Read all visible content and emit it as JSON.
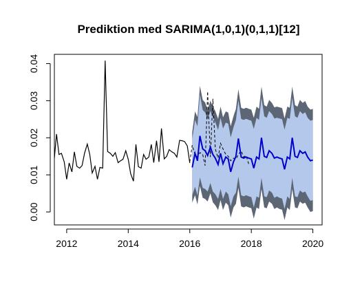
{
  "chart_data": {
    "type": "line",
    "title": "Prediktion med SARIMA(1,0,1)(0,1,1)[12]",
    "xlabel": "",
    "ylabel": "",
    "xlim": [
      2011.6,
      2020.3
    ],
    "ylim": [
      -0.0035,
      0.0425
    ],
    "x_ticks": [
      2012,
      2014,
      2016,
      2018,
      2020
    ],
    "x_tick_labels": [
      "2012",
      "2014",
      "2016",
      "2018",
      "2020"
    ],
    "y_ticks": [
      0.0,
      0.01,
      0.02,
      0.03,
      0.04
    ],
    "y_tick_labels": [
      "0.00",
      "0.01",
      "0.02",
      "0.03",
      "0.04"
    ],
    "grid": false,
    "legend": "none",
    "colors": {
      "observed": "#000000",
      "actual_dashed": "#000000",
      "forecast": "#0000cc",
      "band_80": "#b4c8ec",
      "band_95": "#5c6675"
    },
    "observed": {
      "x": [
        2011.6,
        2011.67,
        2011.75,
        2011.83,
        2011.92,
        2012.0,
        2012.08,
        2012.17,
        2012.25,
        2012.33,
        2012.42,
        2012.5,
        2012.58,
        2012.67,
        2012.75,
        2012.83,
        2012.92,
        2013.0,
        2013.08,
        2013.17,
        2013.25,
        2013.33,
        2013.42,
        2013.5,
        2013.58,
        2013.67,
        2013.75,
        2013.83,
        2013.92,
        2014.0,
        2014.08,
        2014.17,
        2014.25,
        2014.33,
        2014.42,
        2014.5,
        2014.58,
        2014.67,
        2014.75,
        2014.83,
        2014.92,
        2015.0,
        2015.08,
        2015.17,
        2015.25,
        2015.33,
        2015.42,
        2015.5,
        2015.58,
        2015.67,
        2015.75,
        2015.83,
        2015.92,
        2016.0
      ],
      "y": [
        0.0145,
        0.021,
        0.0155,
        0.0158,
        0.0135,
        0.0088,
        0.0132,
        0.0108,
        0.0162,
        0.0123,
        0.0118,
        0.0125,
        0.0158,
        0.0183,
        0.0155,
        0.0105,
        0.0123,
        0.0088,
        0.012,
        0.0118,
        0.0408,
        0.0163,
        0.0158,
        0.015,
        0.016,
        0.0133,
        0.0138,
        0.0142,
        0.0165,
        0.0142,
        0.0103,
        0.0083,
        0.0182,
        0.0122,
        0.0118,
        0.0155,
        0.0142,
        0.0148,
        0.0182,
        0.0133,
        0.0192,
        0.0135,
        0.0225,
        0.0143,
        0.015,
        0.0168,
        0.0162,
        0.0158,
        0.0148,
        0.0193,
        0.0192,
        0.019,
        0.0178,
        0.0132
      ]
    },
    "actual_dashed": {
      "x": [
        2016.0,
        2016.08,
        2016.17,
        2016.25,
        2016.33,
        2016.42,
        2016.5,
        2016.58,
        2016.67,
        2016.75,
        2016.83,
        2016.92,
        2017.0,
        2017.08,
        2017.17,
        2017.25,
        2017.33,
        2017.42,
        2017.5,
        2017.58,
        2017.67,
        2017.75,
        2017.83,
        2017.92
      ],
      "y": [
        0.0135,
        0.018,
        0.0155,
        0.0148,
        0.016,
        0.0155,
        0.0125,
        0.0325,
        0.0148,
        0.0305,
        0.017,
        0.0145,
        0.0185,
        0.017,
        0.0155,
        0.015,
        0.0138,
        0.0145,
        0.0142,
        0.0155,
        0.0165,
        0.0148,
        0.0152,
        0.0128
      ]
    },
    "forecast": {
      "x": [
        2016.08,
        2016.17,
        2016.25,
        2016.33,
        2016.42,
        2016.5,
        2016.58,
        2016.67,
        2016.75,
        2016.83,
        2016.92,
        2017.0,
        2017.08,
        2017.17,
        2017.25,
        2017.33,
        2017.42,
        2017.5,
        2017.58,
        2017.67,
        2017.75,
        2017.83,
        2017.92,
        2018.0,
        2018.08,
        2018.17,
        2018.25,
        2018.33,
        2018.42,
        2018.5,
        2018.58,
        2018.67,
        2018.75,
        2018.83,
        2018.92,
        2019.0,
        2019.08,
        2019.17,
        2019.25,
        2019.33,
        2019.42,
        2019.5,
        2019.58,
        2019.67,
        2019.75,
        2019.83,
        2019.92,
        2020.0
      ],
      "y": [
        0.012,
        0.0158,
        0.0138,
        0.0205,
        0.017,
        0.0165,
        0.0152,
        0.0175,
        0.0155,
        0.0145,
        0.0128,
        0.0158,
        0.013,
        0.0148,
        0.0143,
        0.0108,
        0.0135,
        0.015,
        0.0198,
        0.0148,
        0.0145,
        0.0148,
        0.0145,
        0.0143,
        0.0118,
        0.0148,
        0.0143,
        0.02,
        0.015,
        0.0147,
        0.0165,
        0.0158,
        0.0145,
        0.0148,
        0.0145,
        0.0143,
        0.0115,
        0.0148,
        0.0143,
        0.02,
        0.015,
        0.0147,
        0.0165,
        0.0158,
        0.0162,
        0.0148,
        0.0138,
        0.014
      ],
      "lo80": [
        0.0045,
        0.0068,
        0.0045,
        0.0093,
        0.0065,
        0.0062,
        0.0055,
        0.0078,
        0.0055,
        0.0048,
        0.0035,
        0.0062,
        0.0035,
        0.0055,
        0.0048,
        0.0015,
        0.0042,
        0.0052,
        0.0095,
        0.0045,
        0.0042,
        0.0045,
        0.0042,
        0.004,
        0.0012,
        0.0042,
        0.0038,
        0.0092,
        0.0042,
        0.004,
        0.0058,
        0.0052,
        0.0038,
        0.0042,
        0.0038,
        0.0036,
        0.0008,
        0.0042,
        0.0035,
        0.0092,
        0.0042,
        0.004,
        0.0058,
        0.0052,
        0.0055,
        0.0042,
        0.003,
        0.0032
      ],
      "hi80": [
        0.0195,
        0.0248,
        0.0231,
        0.0317,
        0.0275,
        0.0268,
        0.0249,
        0.0272,
        0.0255,
        0.0242,
        0.0221,
        0.0254,
        0.0225,
        0.0241,
        0.0238,
        0.0201,
        0.0228,
        0.0248,
        0.0301,
        0.0251,
        0.0248,
        0.0251,
        0.0248,
        0.0246,
        0.0224,
        0.0254,
        0.0248,
        0.0308,
        0.0258,
        0.0254,
        0.0272,
        0.0264,
        0.0252,
        0.0254,
        0.0252,
        0.025,
        0.0222,
        0.0254,
        0.0251,
        0.0308,
        0.0258,
        0.0254,
        0.0272,
        0.0264,
        0.0269,
        0.0254,
        0.0246,
        0.0248
      ],
      "lo95": [
        0.0025,
        0.0045,
        0.002,
        0.007,
        0.0038,
        0.0035,
        0.0028,
        0.005,
        0.0026,
        0.0018,
        0.0005,
        0.0032,
        0.0005,
        0.0025,
        0.0018,
        -0.0015,
        0.0012,
        0.0022,
        0.0065,
        0.0015,
        0.0012,
        0.0015,
        0.0012,
        0.001,
        -0.0018,
        0.0012,
        0.0008,
        0.0062,
        0.0012,
        0.001,
        0.0028,
        0.0022,
        0.0008,
        0.0012,
        0.0008,
        0.0006,
        -0.0022,
        0.0012,
        0.0005,
        0.0062,
        0.0012,
        0.001,
        0.0028,
        0.0022,
        0.0025,
        0.0012,
        0.0,
        0.0002
      ],
      "hi95": [
        0.0215,
        0.0271,
        0.0256,
        0.034,
        0.0302,
        0.0295,
        0.0276,
        0.03,
        0.0284,
        0.0272,
        0.0251,
        0.0284,
        0.0255,
        0.0271,
        0.0268,
        0.0231,
        0.0258,
        0.0278,
        0.0331,
        0.0281,
        0.0278,
        0.0281,
        0.0278,
        0.0276,
        0.0254,
        0.0284,
        0.0278,
        0.0338,
        0.0288,
        0.0284,
        0.0302,
        0.0294,
        0.0282,
        0.0284,
        0.0282,
        0.028,
        0.0252,
        0.0284,
        0.0281,
        0.0338,
        0.0288,
        0.0284,
        0.0302,
        0.0294,
        0.0299,
        0.0284,
        0.0276,
        0.0278
      ]
    }
  }
}
